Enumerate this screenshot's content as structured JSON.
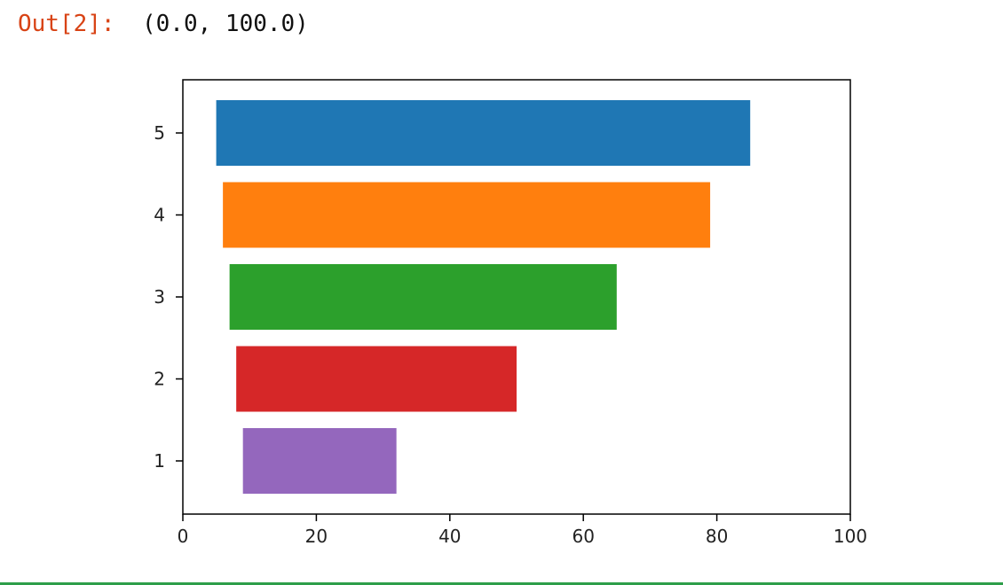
{
  "cell": {
    "prompt": "Out[2]:",
    "value": "(0.0, 100.0)"
  },
  "chart_data": {
    "type": "bar",
    "orientation": "horizontal",
    "title": "",
    "xlabel": "",
    "ylabel": "",
    "xlim": [
      0,
      100
    ],
    "categories": [
      "1",
      "2",
      "3",
      "4",
      "5"
    ],
    "bars": [
      {
        "category": "1",
        "start": 9,
        "end": 32,
        "color": "#9467bd"
      },
      {
        "category": "2",
        "start": 8,
        "end": 50,
        "color": "#d62728"
      },
      {
        "category": "3",
        "start": 7,
        "end": 65,
        "color": "#2ca02c"
      },
      {
        "category": "4",
        "start": 6,
        "end": 79,
        "color": "#ff7f0e"
      },
      {
        "category": "5",
        "start": 5,
        "end": 85,
        "color": "#1f77b4"
      }
    ],
    "x_ticks": [
      "0",
      "20",
      "40",
      "60",
      "80",
      "100"
    ],
    "y_ticks": [
      "1",
      "2",
      "3",
      "4",
      "5"
    ],
    "grid": false
  }
}
